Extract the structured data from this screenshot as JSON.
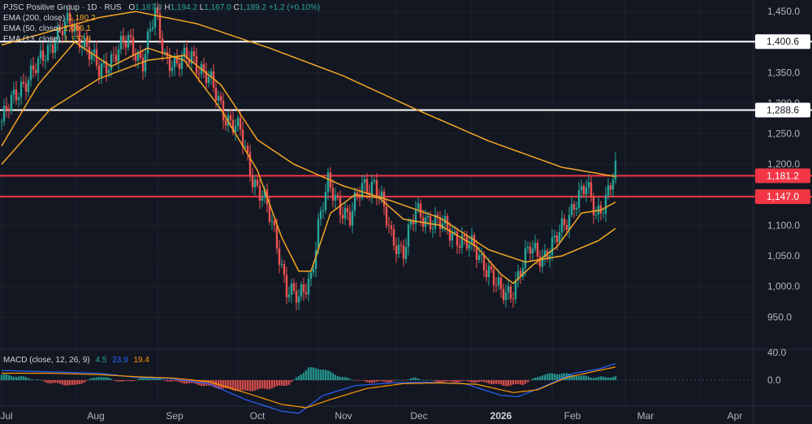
{
  "header": {
    "title": "PJSC Positive Group · 1D · RUS",
    "ohlc": [
      {
        "k": "O",
        "v": "1,187.0"
      },
      {
        "k": "H",
        "v": "1,194.2"
      },
      {
        "k": "L",
        "v": "1,167.0"
      },
      {
        "k": "C",
        "v": "1,189.2"
      }
    ],
    "change": "+1.2 (+0.10%)"
  },
  "indicators": [
    {
      "label": "EMA (200, close)",
      "value": "1,180.2",
      "color": "#f5a623"
    },
    {
      "label": "EMA (50, close)",
      "value": "1,096.1",
      "color": "#f5a623"
    },
    {
      "label": "EMA (13, close)",
      "value": "1,137.8",
      "color": "#f5a623"
    }
  ],
  "macd_legend": {
    "label": "MACD (close, 12, 26, 9)",
    "values": [
      {
        "v": "4.5",
        "color": "#26a69a"
      },
      {
        "v": "23.9",
        "color": "#2962ff"
      },
      {
        "v": "19.4",
        "color": "#ff9800"
      }
    ]
  },
  "colors": {
    "background": "#131722",
    "up": "#26a69a",
    "down": "#ef5350",
    "ema": "#f5a623",
    "macd_line": "#2962ff",
    "signal_line": "#ff9800",
    "hline_white": "#ffffff",
    "hline_red": "#f23645"
  },
  "chart_data": {
    "type": "candlestick",
    "price_axis": {
      "ticks": [
        "1,450.0",
        "1,400.0",
        "1,350.0",
        "1,300.0",
        "1,250.0",
        "1,200.0",
        "1,150.0",
        "1,100.0",
        "1,050.0",
        "1,000.0",
        "950.0"
      ],
      "ylim": [
        930,
        1500
      ]
    },
    "macd_axis": {
      "ticks": [
        "40.0",
        "0.0"
      ]
    },
    "time_axis": {
      "labels": [
        "Jul",
        "Aug",
        "Sep",
        "Oct",
        "Nov",
        "Dec",
        "2026",
        "Feb",
        "Mar",
        "Apr"
      ],
      "bold": [
        "2026"
      ]
    },
    "horizontal_lines": [
      {
        "value": 1400.6,
        "label": "1,400.6",
        "style": "white"
      },
      {
        "value": 1288.6,
        "label": "1,288.6",
        "style": "white"
      },
      {
        "value": 1181.2,
        "label": "1,181.2",
        "style": "red"
      },
      {
        "value": 1147.0,
        "label": "1,147.0",
        "style": "red"
      }
    ],
    "anchors": {
      "close": [
        [
          0,
          1270
        ],
        [
          8,
          1330
        ],
        [
          15,
          1360
        ],
        [
          22,
          1410
        ],
        [
          28,
          1430
        ],
        [
          34,
          1400
        ],
        [
          40,
          1350
        ],
        [
          46,
          1380
        ],
        [
          52,
          1400
        ],
        [
          58,
          1370
        ],
        [
          63,
          1445
        ],
        [
          67,
          1380
        ],
        [
          72,
          1360
        ],
        [
          78,
          1380
        ],
        [
          86,
          1330
        ],
        [
          92,
          1280
        ],
        [
          98,
          1250
        ],
        [
          103,
          1180
        ],
        [
          108,
          1140
        ],
        [
          113,
          1070
        ],
        [
          117,
          1000
        ],
        [
          122,
          975
        ],
        [
          127,
          1020
        ],
        [
          130,
          1100
        ],
        [
          134,
          1165
        ],
        [
          138,
          1140
        ],
        [
          143,
          1110
        ],
        [
          148,
          1165
        ],
        [
          153,
          1170
        ],
        [
          156,
          1135
        ],
        [
          160,
          1080
        ],
        [
          165,
          1060
        ],
        [
          170,
          1120
        ],
        [
          176,
          1110
        ],
        [
          182,
          1095
        ],
        [
          188,
          1080
        ],
        [
          195,
          1055
        ],
        [
          200,
          1030
        ],
        [
          205,
          985
        ],
        [
          209,
          990
        ],
        [
          212,
          1020
        ],
        [
          217,
          1060
        ],
        [
          222,
          1050
        ],
        [
          227,
          1070
        ],
        [
          231,
          1100
        ],
        [
          235,
          1140
        ],
        [
          240,
          1160
        ],
        [
          244,
          1120
        ],
        [
          248,
          1145
        ],
        [
          252,
          1185
        ]
      ],
      "ema200": [
        [
          0,
          1395
        ],
        [
          40,
          1440
        ],
        [
          55,
          1450
        ],
        [
          80,
          1430
        ],
        [
          110,
          1390
        ],
        [
          140,
          1345
        ],
        [
          170,
          1290
        ],
        [
          200,
          1238
        ],
        [
          230,
          1195
        ],
        [
          252,
          1180
        ]
      ],
      "ema50": [
        [
          0,
          1200
        ],
        [
          20,
          1290
        ],
        [
          40,
          1340
        ],
        [
          60,
          1370
        ],
        [
          75,
          1378
        ],
        [
          90,
          1330
        ],
        [
          105,
          1240
        ],
        [
          120,
          1200
        ],
        [
          140,
          1165
        ],
        [
          160,
          1140
        ],
        [
          180,
          1112
        ],
        [
          200,
          1060
        ],
        [
          215,
          1040
        ],
        [
          230,
          1050
        ],
        [
          245,
          1075
        ],
        [
          252,
          1095
        ]
      ],
      "ema13": [
        [
          0,
          1230
        ],
        [
          15,
          1330
        ],
        [
          30,
          1400
        ],
        [
          45,
          1360
        ],
        [
          60,
          1390
        ],
        [
          75,
          1370
        ],
        [
          90,
          1290
        ],
        [
          105,
          1190
        ],
        [
          115,
          1080
        ],
        [
          122,
          1025
        ],
        [
          127,
          1025
        ],
        [
          135,
          1120
        ],
        [
          145,
          1150
        ],
        [
          155,
          1145
        ],
        [
          165,
          1110
        ],
        [
          180,
          1100
        ],
        [
          195,
          1065
        ],
        [
          205,
          1020
        ],
        [
          210,
          1005
        ],
        [
          218,
          1035
        ],
        [
          228,
          1065
        ],
        [
          238,
          1120
        ],
        [
          246,
          1125
        ],
        [
          252,
          1138
        ]
      ],
      "macd": [
        [
          0,
          14
        ],
        [
          20,
          12
        ],
        [
          40,
          10
        ],
        [
          55,
          4
        ],
        [
          70,
          2
        ],
        [
          85,
          -5
        ],
        [
          100,
          -28
        ],
        [
          115,
          -45
        ],
        [
          122,
          -48
        ],
        [
          132,
          -22
        ],
        [
          145,
          -8
        ],
        [
          160,
          -4
        ],
        [
          175,
          -3
        ],
        [
          190,
          -5
        ],
        [
          205,
          -22
        ],
        [
          212,
          -24
        ],
        [
          222,
          -10
        ],
        [
          235,
          10
        ],
        [
          245,
          16
        ],
        [
          252,
          24
        ]
      ],
      "signal": [
        [
          0,
          10
        ],
        [
          20,
          10
        ],
        [
          40,
          8
        ],
        [
          55,
          5
        ],
        [
          70,
          3
        ],
        [
          85,
          -2
        ],
        [
          100,
          -18
        ],
        [
          115,
          -35
        ],
        [
          125,
          -40
        ],
        [
          135,
          -28
        ],
        [
          150,
          -12
        ],
        [
          165,
          -5
        ],
        [
          180,
          -4
        ],
        [
          195,
          -6
        ],
        [
          210,
          -18
        ],
        [
          220,
          -14
        ],
        [
          232,
          4
        ],
        [
          245,
          14
        ],
        [
          252,
          19
        ]
      ],
      "hist": [
        [
          0,
          8
        ],
        [
          10,
          4
        ],
        [
          20,
          -4
        ],
        [
          30,
          -8
        ],
        [
          40,
          6
        ],
        [
          50,
          -3
        ],
        [
          60,
          4
        ],
        [
          70,
          -2
        ],
        [
          80,
          -6
        ],
        [
          90,
          -12
        ],
        [
          100,
          -16
        ],
        [
          110,
          -12
        ],
        [
          118,
          -6
        ],
        [
          126,
          18
        ],
        [
          132,
          16
        ],
        [
          140,
          4
        ],
        [
          150,
          -3
        ],
        [
          160,
          -2
        ],
        [
          170,
          3
        ],
        [
          180,
          -3
        ],
        [
          190,
          -2
        ],
        [
          200,
          -4
        ],
        [
          206,
          -8
        ],
        [
          214,
          -6
        ],
        [
          222,
          8
        ],
        [
          230,
          10
        ],
        [
          238,
          6
        ],
        [
          244,
          4
        ],
        [
          252,
          5
        ]
      ]
    }
  }
}
